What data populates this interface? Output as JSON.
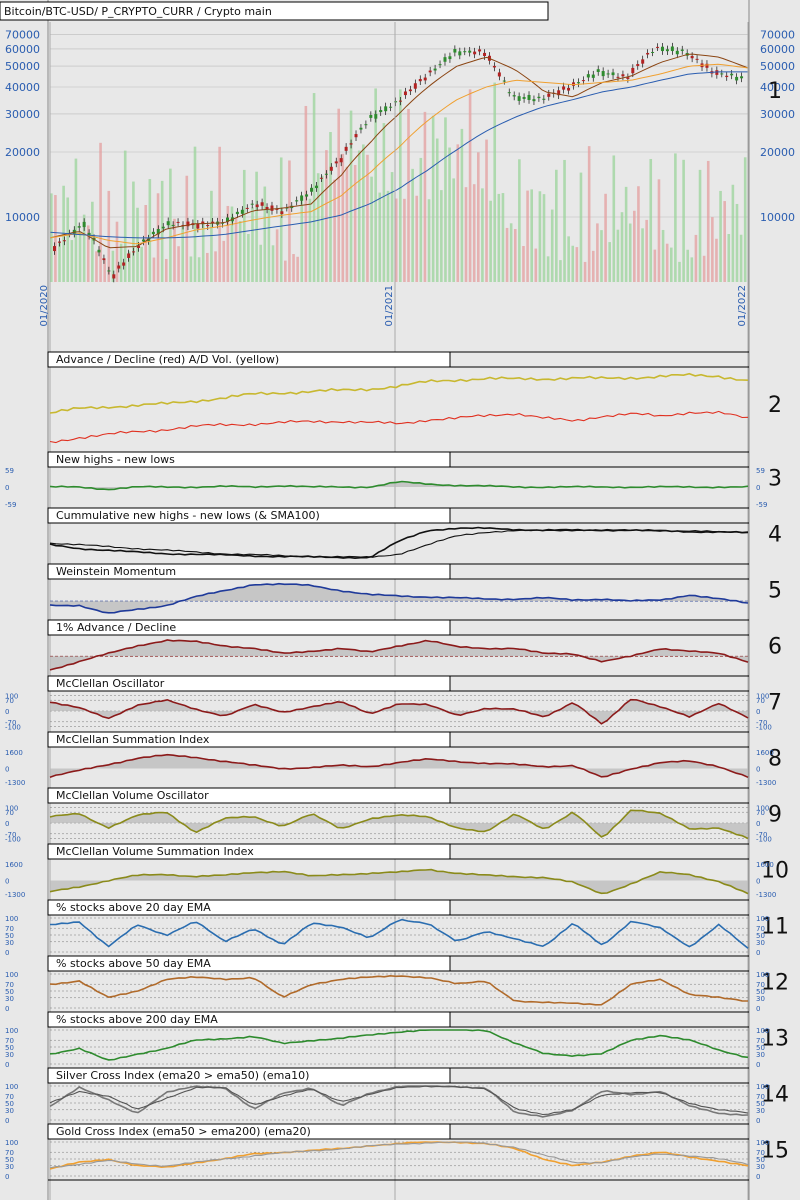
{
  "header": {
    "title": "Bitcoin/BTC-USD/ P_CRYPTO_CURR / Crypto main"
  },
  "colors": {
    "background": "#e8e8e8",
    "grid": "#777777",
    "up_candle": "#2e8b2e",
    "down_candle": "#b22222",
    "ma_short": "#8b4513",
    "ma_mid": "#f0a030",
    "ma_long": "#2a5db0",
    "axis_text": "#2a5db0"
  },
  "chart_data": [
    {
      "type": "line",
      "panel": "1",
      "title": "Bitcoin/BTC-USD/ P_CRYPTO_CURR / Crypto main",
      "y_scale": "log",
      "ylim": [
        5000,
        80000
      ],
      "y_ticks": [
        "70000",
        "60000",
        "50000",
        "40000",
        "30000",
        "20000",
        "10000"
      ],
      "x_ticks": [
        "01/2020",
        "01/2021",
        "01/2022"
      ],
      "x": [
        "2020-01",
        "2020-02",
        "2020-03",
        "2020-04",
        "2020-05",
        "2020-06",
        "2020-07",
        "2020-08",
        "2020-09",
        "2020-10",
        "2020-11",
        "2020-12",
        "2021-01",
        "2021-02",
        "2021-03",
        "2021-04",
        "2021-05",
        "2021-06",
        "2021-07",
        "2021-08",
        "2021-09",
        "2021-10",
        "2021-11",
        "2021-12",
        "2022-01"
      ],
      "series": [
        {
          "values": [
            7200,
            9300,
            5200,
            7500,
            9300,
            9200,
            9500,
            11500,
            10600,
            13200,
            18500,
            28500,
            34000,
            45000,
            58000,
            58000,
            36000,
            35000,
            40000,
            47000,
            44000,
            61000,
            58000,
            47000,
            44000
          ]
        },
        {
          "values": [
            8000,
            8600,
            7200,
            7300,
            8800,
            9300,
            9400,
            10700,
            11000,
            11500,
            15500,
            22000,
            30000,
            40000,
            50000,
            55000,
            48000,
            38000,
            36000,
            42000,
            45000,
            52000,
            57000,
            55000,
            49000
          ]
        },
        {
          "values": [
            8000,
            8400,
            7800,
            7500,
            8000,
            8700,
            9100,
            9700,
            10200,
            10600,
            12500,
            16000,
            21000,
            28000,
            35000,
            40000,
            43000,
            42000,
            41000,
            42000,
            43000,
            46000,
            50000,
            51000,
            49000
          ]
        },
        {
          "values": [
            8500,
            8300,
            8100,
            8000,
            8000,
            8100,
            8300,
            8700,
            9100,
            9500,
            10200,
            11500,
            13500,
            16500,
            20500,
            25000,
            29000,
            32500,
            35000,
            38000,
            40000,
            43000,
            46000,
            47000,
            47000
          ]
        }
      ]
    },
    {
      "type": "line",
      "panel": "2",
      "title": "Advance / Decline (red) A/D Vol. (yellow)",
      "series": [
        {
          "values": [
            10,
            18,
            22,
            24,
            27,
            33,
            38,
            45,
            48,
            50,
            52,
            55,
            60,
            68,
            72,
            74,
            73,
            74,
            75,
            74,
            76,
            78,
            80,
            79,
            70
          ]
        },
        {
          "values": [
            -45,
            -35,
            -30,
            -25,
            -20,
            -15,
            -12,
            -10,
            -8,
            -6,
            -5,
            -8,
            -10,
            -2,
            0,
            5,
            10,
            0,
            -5,
            5,
            8,
            4,
            12,
            10,
            0
          ]
        }
      ]
    },
    {
      "type": "line",
      "panel": "3",
      "title": "New highs - new lows",
      "y_ticks": [
        "59",
        "0",
        "-59"
      ],
      "ylim": [
        -59,
        59
      ],
      "series": [
        {
          "values": [
            0,
            0,
            -8,
            0,
            0,
            0,
            2,
            0,
            5,
            0,
            0,
            0,
            18,
            10,
            6,
            3,
            0,
            0,
            0,
            0,
            0,
            0,
            0,
            0,
            0
          ]
        }
      ]
    },
    {
      "type": "line",
      "panel": "4",
      "title": "Cummulative new highs - new lows (& SMA100)",
      "series": [
        {
          "values": [
            30,
            20,
            15,
            10,
            6,
            4,
            2,
            0,
            -2,
            -3,
            -4,
            -5,
            40,
            70,
            75,
            75,
            72,
            70,
            70,
            70,
            70,
            68,
            66,
            65,
            63
          ]
        },
        {
          "values": [
            35,
            30,
            25,
            20,
            15,
            10,
            6,
            3,
            0,
            -2,
            -3,
            -4,
            5,
            30,
            55,
            65,
            68,
            69,
            70,
            70,
            70,
            69,
            67,
            66,
            64
          ]
        }
      ]
    },
    {
      "type": "area",
      "panel": "5",
      "title": "Weinstein Momentum",
      "series": [
        {
          "values": [
            -20,
            -20,
            -60,
            -40,
            -20,
            20,
            50,
            80,
            80,
            75,
            50,
            30,
            25,
            20,
            15,
            10,
            10,
            15,
            5,
            10,
            0,
            5,
            30,
            10,
            -10
          ]
        }
      ]
    },
    {
      "type": "area",
      "panel": "6",
      "title": "1% Advance / Decline",
      "series": [
        {
          "values": [
            -50,
            -20,
            10,
            40,
            60,
            55,
            40,
            30,
            10,
            20,
            30,
            15,
            40,
            60,
            35,
            30,
            30,
            10,
            10,
            -20,
            0,
            30,
            20,
            10,
            -20
          ]
        }
      ]
    },
    {
      "type": "line",
      "panel": "7",
      "title": "McClellan Oscillator",
      "y_ticks": [
        "100",
        "70",
        "0",
        "-70",
        "-100"
      ],
      "ylim": [
        -110,
        110
      ],
      "series": [
        {
          "values": [
            60,
            20,
            -50,
            40,
            70,
            10,
            -30,
            40,
            -10,
            30,
            60,
            -20,
            50,
            40,
            -30,
            20,
            10,
            -40,
            60,
            -90,
            80,
            30,
            -40,
            50,
            -40
          ]
        }
      ]
    },
    {
      "type": "area",
      "panel": "8",
      "title": "McClellan Summation Index",
      "y_ticks": [
        "1600",
        "0",
        "-1300"
      ],
      "ylim": [
        -1500,
        1800
      ],
      "series": [
        {
          "values": [
            -800,
            -200,
            400,
            1000,
            1300,
            1100,
            700,
            300,
            0,
            100,
            300,
            200,
            600,
            900,
            700,
            500,
            400,
            200,
            300,
            -900,
            0,
            600,
            700,
            200,
            -800
          ]
        }
      ]
    },
    {
      "type": "line",
      "panel": "9",
      "title": "McClellan Volume Oscillator",
      "y_ticks": [
        "100",
        "70",
        "0",
        "-70",
        "-100"
      ],
      "ylim": [
        -110,
        110
      ],
      "series": [
        {
          "values": [
            40,
            60,
            -30,
            50,
            70,
            -60,
            30,
            40,
            -20,
            60,
            -40,
            30,
            50,
            40,
            -30,
            -60,
            60,
            -40,
            70,
            -100,
            90,
            60,
            -40,
            -30,
            -100
          ]
        }
      ]
    },
    {
      "type": "area",
      "panel": "10",
      "title": "McClellan Volume Summation Index",
      "y_ticks": [
        "1600",
        "0",
        "-1300"
      ],
      "ylim": [
        -1500,
        1800
      ],
      "series": [
        {
          "values": [
            -1100,
            -600,
            0,
            500,
            600,
            400,
            500,
            800,
            900,
            400,
            600,
            700,
            800,
            1100,
            700,
            500,
            400,
            300,
            -200,
            -1300,
            -300,
            800,
            600,
            -100,
            -1300
          ]
        }
      ]
    },
    {
      "type": "line",
      "panel": "11",
      "title": "% stocks above 20 day EMA",
      "y_ticks": [
        "100",
        "70",
        "50",
        "30",
        "0"
      ],
      "ylim": [
        0,
        100
      ],
      "series": [
        {
          "values": [
            80,
            90,
            15,
            80,
            50,
            90,
            30,
            70,
            20,
            85,
            75,
            40,
            95,
            85,
            30,
            60,
            40,
            15,
            85,
            20,
            90,
            70,
            15,
            80,
            10
          ]
        }
      ]
    },
    {
      "type": "line",
      "panel": "12",
      "title": "% stocks above 50 day EMA",
      "y_ticks": [
        "100",
        "70",
        "50",
        "30",
        "0"
      ],
      "ylim": [
        0,
        100
      ],
      "series": [
        {
          "values": [
            70,
            80,
            30,
            50,
            85,
            90,
            85,
            90,
            30,
            70,
            85,
            90,
            95,
            90,
            70,
            80,
            20,
            15,
            15,
            10,
            70,
            85,
            40,
            30,
            20
          ]
        }
      ]
    },
    {
      "type": "line",
      "panel": "13",
      "title": "% stocks above 200 day EMA",
      "y_ticks": [
        "100",
        "70",
        "50",
        "30",
        "0"
      ],
      "ylim": [
        0,
        100
      ],
      "series": [
        {
          "values": [
            30,
            45,
            10,
            30,
            45,
            70,
            75,
            80,
            60,
            70,
            75,
            85,
            95,
            100,
            100,
            100,
            60,
            30,
            25,
            30,
            70,
            85,
            70,
            40,
            20
          ]
        }
      ]
    },
    {
      "type": "line",
      "panel": "14",
      "title": "Silver Cross Index (ema20 > ema50) (ema10)",
      "y_ticks": [
        "100",
        "70",
        "50",
        "30",
        "0"
      ],
      "ylim": [
        0,
        100
      ],
      "series": [
        {
          "values": [
            40,
            95,
            60,
            20,
            80,
            100,
            95,
            30,
            80,
            95,
            40,
            80,
            100,
            100,
            98,
            95,
            20,
            10,
            30,
            85,
            75,
            85,
            40,
            20,
            15
          ]
        },
        {
          "values": [
            50,
            85,
            70,
            30,
            65,
            95,
            95,
            45,
            70,
            90,
            55,
            75,
            95,
            100,
            98,
            90,
            35,
            15,
            30,
            75,
            80,
            80,
            50,
            30,
            20
          ]
        }
      ]
    },
    {
      "type": "line",
      "panel": "15",
      "title": "Gold Cross Index (ema50 > ema200) (ema20)",
      "y_ticks": [
        "100",
        "70",
        "50",
        "30",
        "0"
      ],
      "ylim": [
        0,
        100
      ],
      "series": [
        {
          "values": [
            20,
            40,
            50,
            30,
            25,
            40,
            50,
            65,
            70,
            75,
            80,
            90,
            95,
            100,
            100,
            95,
            80,
            50,
            30,
            40,
            60,
            70,
            55,
            45,
            30
          ]
        },
        {
          "values": [
            25,
            35,
            45,
            35,
            30,
            40,
            50,
            60,
            68,
            74,
            80,
            88,
            94,
            98,
            100,
            96,
            85,
            60,
            40,
            40,
            55,
            65,
            60,
            50,
            35
          ]
        }
      ]
    }
  ]
}
